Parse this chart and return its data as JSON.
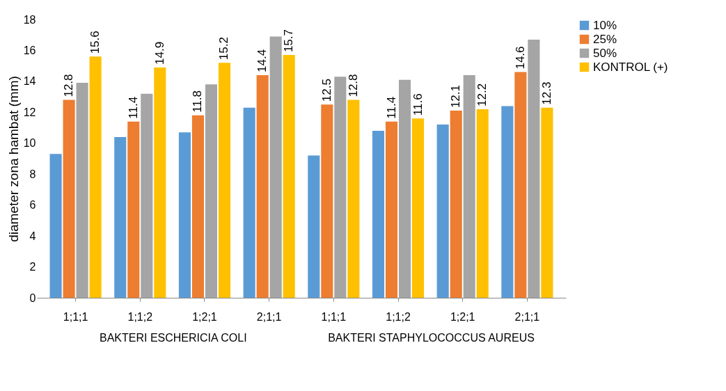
{
  "chart_data": {
    "type": "bar",
    "ylabel": "diameter zona hambat (mm)",
    "categories": [
      "1;1;1",
      "1;1;2",
      "1;2;1",
      "2;1;1",
      "1;1;1",
      "1;1;2",
      "1;2;1",
      "2;1;1"
    ],
    "series": [
      {
        "name": "10%",
        "color": "#5b9bd5",
        "values": [
          9.3,
          10.4,
          10.7,
          12.3,
          9.2,
          10.8,
          11.2,
          12.4
        ]
      },
      {
        "name": "25%",
        "color": "#ed7d31",
        "values": [
          12.8,
          11.4,
          11.8,
          14.4,
          12.5,
          11.4,
          12.1,
          14.6
        ],
        "value_labels": [
          "12.8",
          "11.4",
          "11.8",
          "14.4",
          "12.5",
          "11.4",
          "12.1",
          "14.6"
        ]
      },
      {
        "name": "50%",
        "color": "#a5a5a5",
        "values": [
          13.9,
          13.2,
          13.8,
          16.9,
          14.3,
          14.1,
          14.4,
          16.7
        ]
      },
      {
        "name": "KONTROL (+)",
        "color": "#ffc000",
        "values": [
          15.6,
          14.9,
          15.2,
          15.7,
          12.8,
          11.6,
          12.2,
          12.3
        ],
        "value_labels": [
          "15.6",
          "14.9",
          "15.2",
          "15.7",
          "12.8",
          "11.6",
          "12.2",
          "12.3"
        ]
      }
    ],
    "ylim": [
      0,
      18
    ],
    "yticks": [
      0,
      2,
      4,
      6,
      8,
      10,
      12,
      14,
      16,
      18
    ],
    "grid": false,
    "legend": "right",
    "annotations": [
      "BAKTERI ESCHERICIA COLI",
      "BAKTERI STAPHYLOCOCCUS AUREUS"
    ]
  }
}
